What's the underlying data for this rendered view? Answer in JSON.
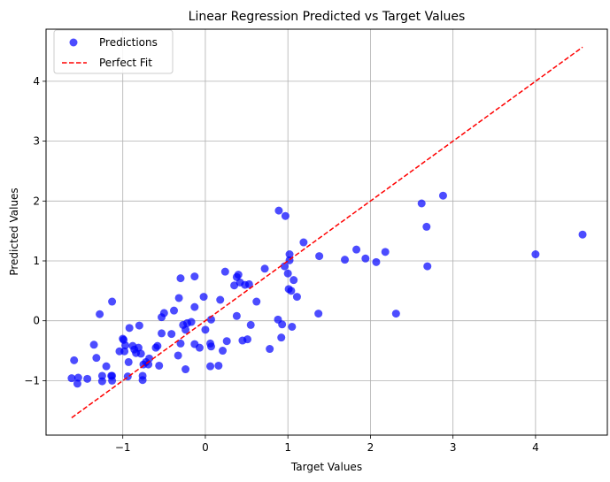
{
  "chart_data": {
    "type": "scatter",
    "title": "Linear Regression Predicted vs Target Values",
    "xlabel": "Target Values",
    "ylabel": "Predicted Values",
    "xlim": [
      -1.93,
      4.87
    ],
    "ylim": [
      -1.91,
      4.87
    ],
    "xticks": [
      -1,
      0,
      1,
      2,
      3,
      4
    ],
    "yticks": [
      -1,
      0,
      1,
      2,
      3,
      4
    ],
    "grid": true,
    "legend_position": "upper-left",
    "series": [
      {
        "name": "Predictions",
        "kind": "scatter",
        "color": "#0000ff",
        "opacity": 0.7,
        "points": [
          [
            -1.62,
            -0.96
          ],
          [
            -1.59,
            -0.66
          ],
          [
            -1.55,
            -1.05
          ],
          [
            -1.54,
            -0.95
          ],
          [
            -1.43,
            -0.97
          ],
          [
            -1.35,
            -0.4
          ],
          [
            -1.32,
            -0.62
          ],
          [
            -1.28,
            0.11
          ],
          [
            -1.25,
            -0.92
          ],
          [
            -1.25,
            -1.01
          ],
          [
            -1.2,
            -0.76
          ],
          [
            -1.14,
            -0.92
          ],
          [
            -1.13,
            -0.92
          ],
          [
            -1.13,
            -1.0
          ],
          [
            -1.13,
            0.32
          ],
          [
            -1.04,
            -0.51
          ],
          [
            -1.0,
            -0.3
          ],
          [
            -0.99,
            -0.32
          ],
          [
            -0.98,
            -0.51
          ],
          [
            -0.97,
            -0.41
          ],
          [
            -0.94,
            -0.93
          ],
          [
            -0.93,
            -0.69
          ],
          [
            -0.92,
            -0.12
          ],
          [
            -0.88,
            -0.42
          ],
          [
            -0.86,
            -0.48
          ],
          [
            -0.84,
            -0.54
          ],
          [
            -0.81,
            -0.45
          ],
          [
            -0.8,
            -0.08
          ],
          [
            -0.78,
            -0.55
          ],
          [
            -0.76,
            -0.99
          ],
          [
            -0.76,
            -0.92
          ],
          [
            -0.75,
            -0.73
          ],
          [
            -0.72,
            -0.69
          ],
          [
            -0.69,
            -0.73
          ],
          [
            -0.68,
            -0.63
          ],
          [
            -0.6,
            -0.45
          ],
          [
            -0.58,
            -0.42
          ],
          [
            -0.56,
            -0.75
          ],
          [
            -0.53,
            -0.21
          ],
          [
            -0.53,
            0.06
          ],
          [
            -0.5,
            0.13
          ],
          [
            -0.41,
            -0.22
          ],
          [
            -0.38,
            0.17
          ],
          [
            -0.33,
            -0.58
          ],
          [
            -0.32,
            0.38
          ],
          [
            -0.3,
            0.71
          ],
          [
            -0.3,
            -0.38
          ],
          [
            -0.27,
            -0.07
          ],
          [
            -0.24,
            -0.81
          ],
          [
            -0.24,
            -0.15
          ],
          [
            -0.22,
            -0.04
          ],
          [
            -0.17,
            -0.02
          ],
          [
            -0.13,
            0.74
          ],
          [
            -0.13,
            0.23
          ],
          [
            -0.13,
            -0.39
          ],
          [
            -0.07,
            -0.45
          ],
          [
            -0.02,
            0.4
          ],
          [
            0.0,
            -0.15
          ],
          [
            0.06,
            -0.76
          ],
          [
            0.06,
            -0.38
          ],
          [
            0.07,
            -0.43
          ],
          [
            0.07,
            0.02
          ],
          [
            0.16,
            -0.75
          ],
          [
            0.18,
            0.35
          ],
          [
            0.21,
            -0.5
          ],
          [
            0.24,
            0.82
          ],
          [
            0.26,
            -0.34
          ],
          [
            0.35,
            0.59
          ],
          [
            0.38,
            0.73
          ],
          [
            0.38,
            0.08
          ],
          [
            0.4,
            0.77
          ],
          [
            0.42,
            0.64
          ],
          [
            0.45,
            -0.33
          ],
          [
            0.48,
            0.6
          ],
          [
            0.51,
            -0.31
          ],
          [
            0.53,
            0.61
          ],
          [
            0.55,
            -0.07
          ],
          [
            0.62,
            0.32
          ],
          [
            0.72,
            0.87
          ],
          [
            0.78,
            -0.47
          ],
          [
            0.88,
            0.02
          ],
          [
            0.89,
            1.84
          ],
          [
            0.92,
            -0.28
          ],
          [
            0.93,
            -0.06
          ],
          [
            0.96,
            0.91
          ],
          [
            0.97,
            1.75
          ],
          [
            1.0,
            0.79
          ],
          [
            1.01,
            0.53
          ],
          [
            1.02,
            1.11
          ],
          [
            1.02,
            1.01
          ],
          [
            1.04,
            0.5
          ],
          [
            1.05,
            -0.1
          ],
          [
            1.07,
            0.68
          ],
          [
            1.11,
            0.4
          ],
          [
            1.19,
            1.31
          ],
          [
            1.37,
            0.12
          ],
          [
            1.38,
            1.08
          ],
          [
            1.69,
            1.02
          ],
          [
            1.83,
            1.19
          ],
          [
            1.94,
            1.04
          ],
          [
            2.07,
            0.98
          ],
          [
            2.18,
            1.15
          ],
          [
            2.31,
            0.12
          ],
          [
            2.62,
            1.96
          ],
          [
            2.68,
            1.57
          ],
          [
            2.69,
            0.91
          ],
          [
            2.88,
            2.09
          ],
          [
            4.0,
            1.11
          ],
          [
            4.57,
            1.44
          ]
        ]
      },
      {
        "name": "Perfect Fit",
        "kind": "line",
        "color": "#ff0000",
        "dash": "dashed",
        "points": [
          [
            -1.62,
            -1.62
          ],
          [
            4.57,
            4.57
          ]
        ]
      }
    ]
  }
}
